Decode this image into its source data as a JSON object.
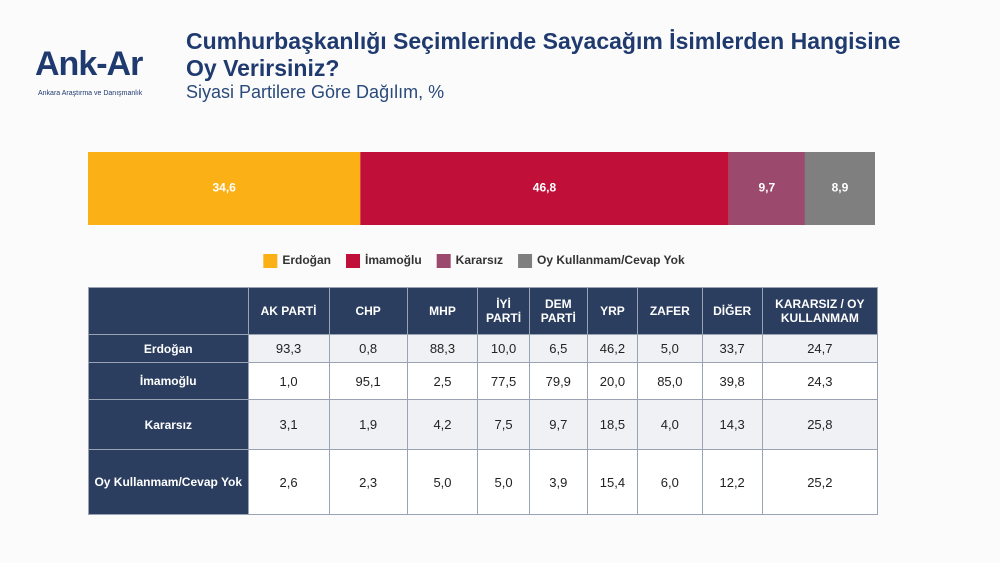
{
  "header": {
    "logo": "Ank-Ar",
    "logo_subtitle": "Ankara Araştırma ve Danışmanlık",
    "title": "Cumhurbaşkanlığı Seçimlerinde Sayacağım İsimlerden Hangisine Oy Verirsiniz?",
    "subtitle": "Siyasi Partilere Göre Dağılım, %"
  },
  "chart_data": {
    "type": "bar",
    "orientation": "horizontal",
    "stacked": true,
    "categories": [
      null
    ],
    "xlim": [
      0,
      100
    ],
    "legend": "bottom",
    "series": [
      {
        "name": "Erdoğan",
        "color": "#fbb016",
        "values": [
          34.6
        ],
        "value_labels": [
          "34,6"
        ]
      },
      {
        "name": "İmamoğlu",
        "color": "#c0103a",
        "values": [
          46.8
        ],
        "value_labels": [
          "46,8"
        ]
      },
      {
        "name": "Kararsız",
        "color": "#9b4a6e",
        "values": [
          9.7
        ],
        "value_labels": [
          "9,7"
        ]
      },
      {
        "name": "Oy Kullanmam/Cevap Yok",
        "color": "#7f7f7f",
        "values": [
          8.9
        ],
        "value_labels": [
          "8,9"
        ]
      }
    ]
  },
  "table": {
    "columns": [
      "AK PARTİ",
      "CHP",
      "MHP",
      "İYİ PARTİ",
      "DEM PARTİ",
      "YRP",
      "ZAFER",
      "DİĞER",
      "KARARSIZ / OY KULLANMAM"
    ],
    "rows": [
      {
        "label": "Erdoğan",
        "cells": [
          "93,3",
          "0,8",
          "88,3",
          "10,0",
          "6,5",
          "46,2",
          "5,0",
          "33,7",
          "24,7"
        ]
      },
      {
        "label": "İmamoğlu",
        "cells": [
          "1,0",
          "95,1",
          "2,5",
          "77,5",
          "79,9",
          "20,0",
          "85,0",
          "39,8",
          "24,3"
        ]
      },
      {
        "label": "Kararsız",
        "cells": [
          "3,1",
          "1,9",
          "4,2",
          "7,5",
          "9,7",
          "18,5",
          "4,0",
          "14,3",
          "25,8"
        ]
      },
      {
        "label": "Oy Kullanmam/Cevap Yok",
        "cells": [
          "2,6",
          "2,3",
          "5,0",
          "5,0",
          "3,9",
          "15,4",
          "6,0",
          "12,2",
          "25,2"
        ]
      }
    ]
  }
}
